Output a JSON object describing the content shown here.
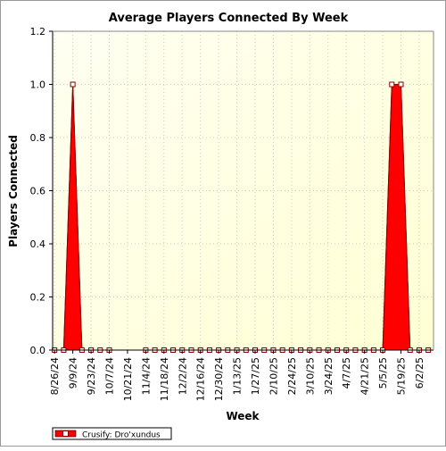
{
  "chart_data": {
    "type": "area",
    "title": "Average Players Connected By Week",
    "xlabel": "Week",
    "ylabel": "Players Connected",
    "ylim": [
      0,
      1.2
    ],
    "yticks": [
      "0.0",
      "0.2",
      "0.4",
      "0.6",
      "0.8",
      "1.0",
      "1.2"
    ],
    "xticks": [
      "8/26/24",
      "9/9/24",
      "9/23/24",
      "10/7/24",
      "10/21/24",
      "11/4/24",
      "11/18/24",
      "12/2/24",
      "12/16/24",
      "12/30/24",
      "1/13/25",
      "1/27/25",
      "2/10/25",
      "2/24/25",
      "3/10/25",
      "3/24/25",
      "4/7/25",
      "4/21/25",
      "5/5/25",
      "5/19/25",
      "6/2/25"
    ],
    "grid": true,
    "legend_position": "bottom-left",
    "series": [
      {
        "name": "Crusify: Dro'xundus",
        "color": "#ff0000",
        "points": [
          [
            "8/26/24",
            0
          ],
          [
            "9/2/24",
            0
          ],
          [
            "9/9/24",
            1
          ],
          [
            "9/16/24",
            0
          ],
          [
            "9/23/24",
            0
          ],
          [
            "9/30/24",
            0
          ],
          [
            "10/7/24",
            0
          ],
          [
            "11/4/24",
            0
          ],
          [
            "11/11/24",
            0
          ],
          [
            "11/18/24",
            0
          ],
          [
            "11/25/24",
            0
          ],
          [
            "12/2/24",
            0
          ],
          [
            "12/9/24",
            0
          ],
          [
            "12/16/24",
            0
          ],
          [
            "12/23/24",
            0
          ],
          [
            "12/30/24",
            0
          ],
          [
            "1/6/25",
            0
          ],
          [
            "1/13/25",
            0
          ],
          [
            "1/20/25",
            0
          ],
          [
            "1/27/25",
            0
          ],
          [
            "2/3/25",
            0
          ],
          [
            "2/10/25",
            0
          ],
          [
            "2/17/25",
            0
          ],
          [
            "2/24/25",
            0
          ],
          [
            "3/3/25",
            0
          ],
          [
            "3/10/25",
            0
          ],
          [
            "3/17/25",
            0
          ],
          [
            "3/24/25",
            0
          ],
          [
            "3/31/25",
            0
          ],
          [
            "4/7/25",
            0
          ],
          [
            "4/14/25",
            0
          ],
          [
            "4/21/25",
            0
          ],
          [
            "4/28/25",
            0
          ],
          [
            "5/5/25",
            0
          ],
          [
            "5/12/25",
            1
          ],
          [
            "5/19/25",
            1
          ],
          [
            "5/26/25",
            0
          ],
          [
            "6/2/25",
            0
          ],
          [
            "6/9/25",
            0
          ]
        ]
      }
    ]
  }
}
